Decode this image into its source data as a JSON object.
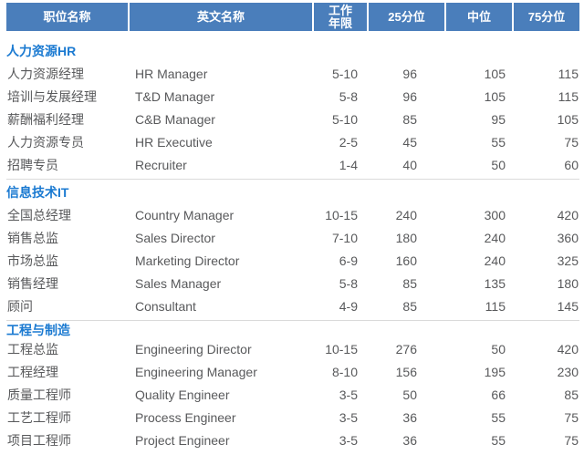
{
  "chart_data": {
    "type": "table",
    "columns": [
      "职位名称",
      "英文名称",
      "工作年限",
      "25分位",
      "中位",
      "75分位"
    ],
    "sections": [
      {
        "title": "人力资源HR",
        "rows": [
          [
            "人力资源经理",
            "HR Manager",
            "5-10",
            "96",
            "105",
            "115"
          ],
          [
            "培训与发展经理",
            "T&D Manager",
            "5-8",
            "96",
            "105",
            "115"
          ],
          [
            "薪酬福利经理",
            "C&B Manager",
            "5-10",
            "85",
            "95",
            "105"
          ],
          [
            "人力资源专员",
            "HR Executive",
            "2-5",
            "45",
            "55",
            "75"
          ],
          [
            "招聘专员",
            "Recruiter",
            "1-4",
            "40",
            "50",
            "60"
          ]
        ]
      },
      {
        "title": "信息技术IT",
        "rows": [
          [
            "全国总经理",
            "Country Manager",
            "10-15",
            "240",
            "300",
            "420"
          ],
          [
            "销售总监",
            "Sales Director",
            "7-10",
            "180",
            "240",
            "360"
          ],
          [
            "市场总监",
            "Marketing Director",
            "6-9",
            "160",
            "240",
            "325"
          ],
          [
            "销售经理",
            "Sales Manager",
            "5-8",
            "85",
            "135",
            "180"
          ],
          [
            "顾问",
            "Consultant",
            "4-9",
            "85",
            "115",
            "145"
          ]
        ]
      },
      {
        "title": "工程与制造",
        "rows": [
          [
            "工程总监",
            "Engineering Director",
            "10-15",
            "276",
            "50",
            "420"
          ],
          [
            "工程经理",
            "Engineering Manager",
            "8-10",
            "156",
            "195",
            "230"
          ],
          [
            "质量工程师",
            "Quality Engineer",
            "3-5",
            "50",
            "66",
            "85"
          ],
          [
            "工艺工程师",
            "Process Engineer",
            "3-5",
            "36",
            "55",
            "75"
          ],
          [
            "项目工程师",
            "Project Engineer",
            "3-5",
            "36",
            "55",
            "75"
          ]
        ]
      }
    ]
  },
  "header": {
    "col_position": "职位名称",
    "col_english": "英文名称",
    "col_years_line1": "工作",
    "col_years_line2": "年限",
    "col_p25": "25分位",
    "col_median": "中位",
    "col_p75": "75分位"
  },
  "colors": {
    "header_bg": "#4a7ebb",
    "header_text": "#ffffff",
    "section_title": "#1b7ad1",
    "row_text": "#58595b",
    "divider": "#dadada"
  }
}
